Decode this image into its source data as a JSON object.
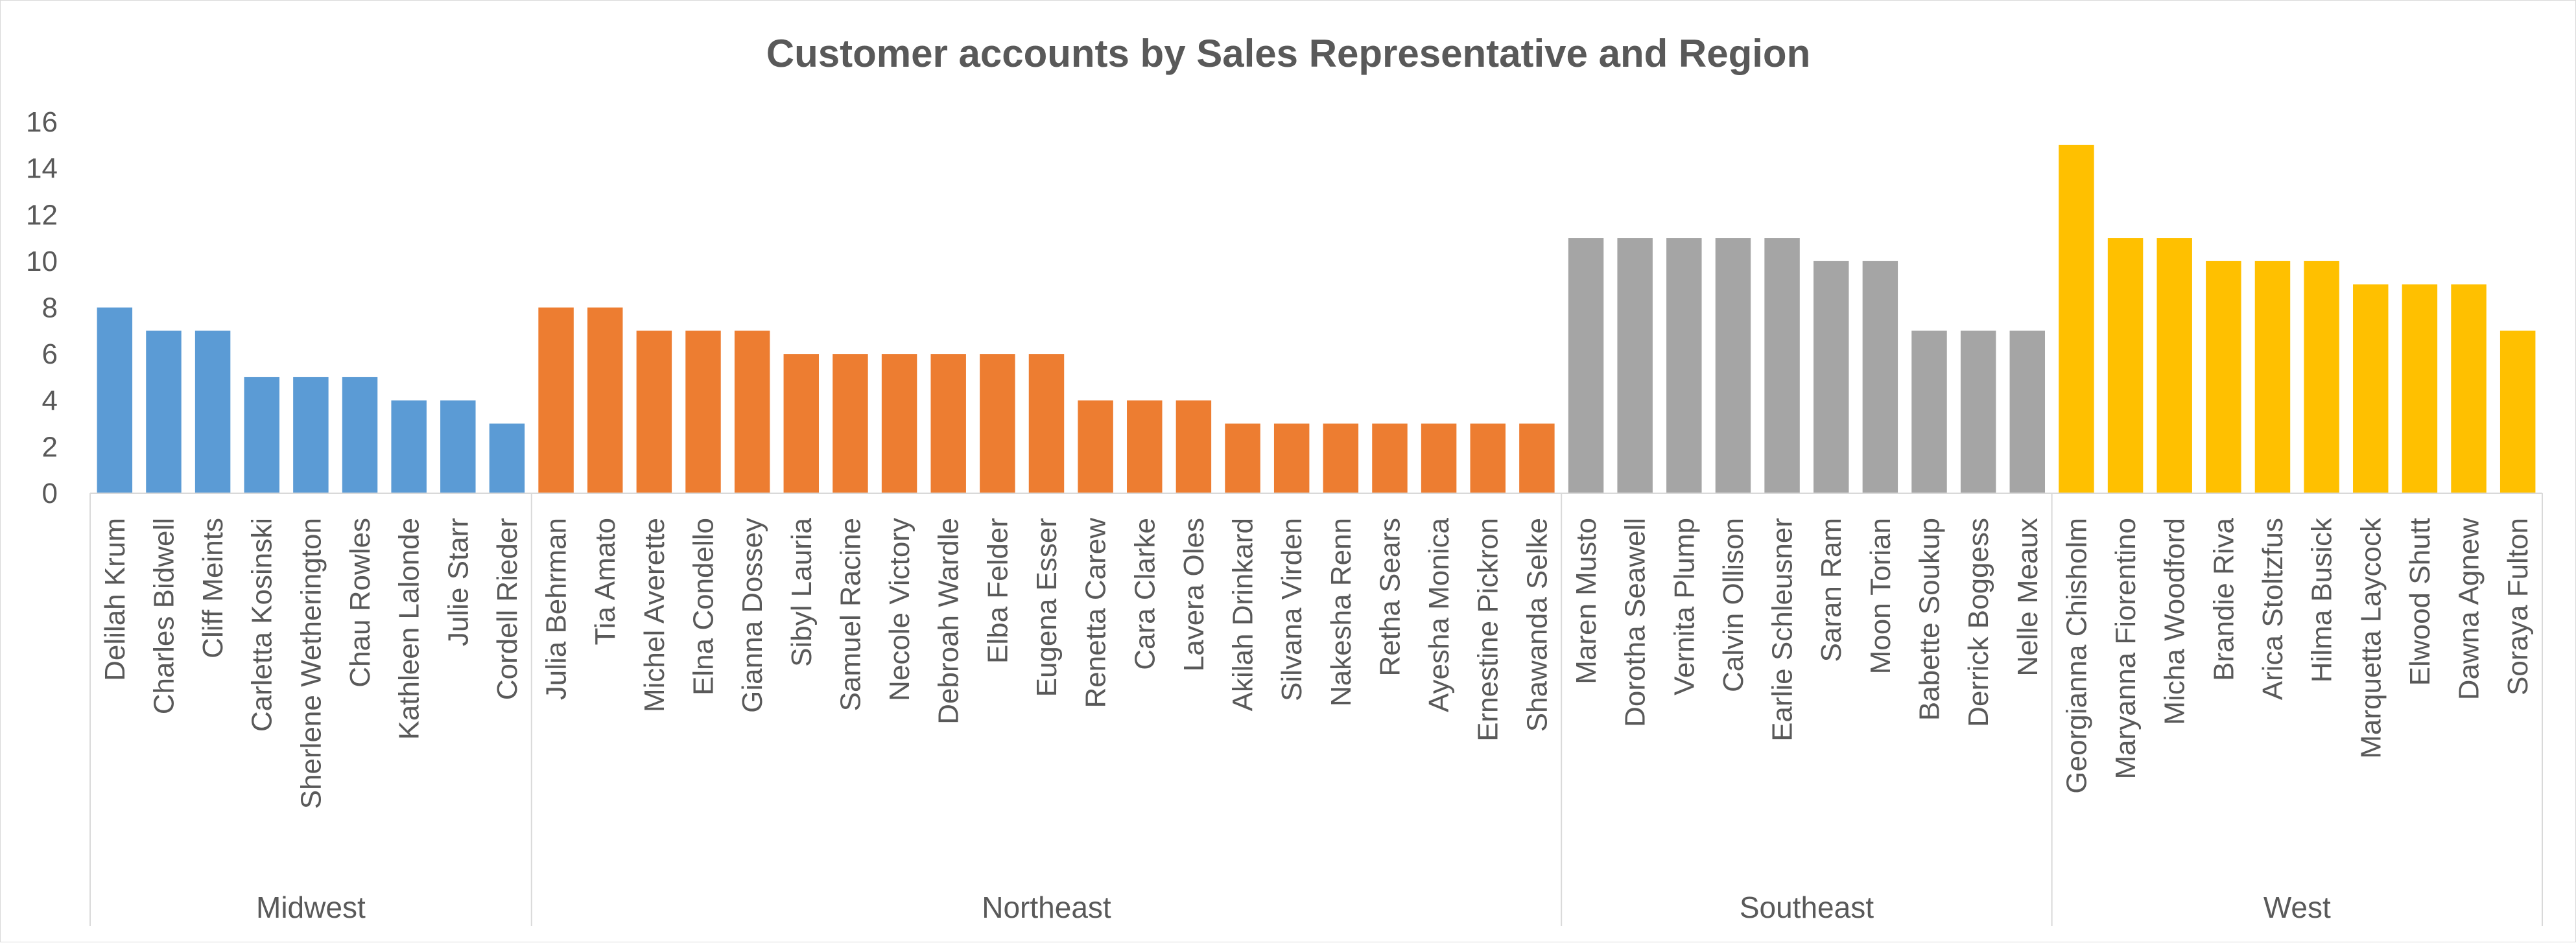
{
  "chart_data": {
    "type": "bar",
    "title": "Customer accounts by Sales Representative and Region",
    "xlabel": "",
    "ylabel": "",
    "ylim": [
      0,
      16
    ],
    "yticks": [
      0,
      2,
      4,
      6,
      8,
      10,
      12,
      14,
      16
    ],
    "grid": false,
    "legend": "none",
    "groups": [
      {
        "region": "Midwest",
        "color": "#5b9bd5",
        "categories": [
          "Delilah Krum",
          "Charles Bidwell",
          "Cliff Meints",
          "Carletta Kosinski",
          "Sherlene Wetherington",
          "Chau Rowles",
          "Kathleen Lalonde",
          "Julie Starr",
          "Cordell Rieder"
        ],
        "values": [
          8,
          7,
          7,
          5,
          5,
          5,
          4,
          4,
          3
        ]
      },
      {
        "region": "Northeast",
        "color": "#ed7d31",
        "categories": [
          "Julia Behrman",
          "Tia Amato",
          "Michel Averette",
          "Elna Condello",
          "Gianna Dossey",
          "Sibyl Lauria",
          "Samuel Racine",
          "Necole Victory",
          "Debroah Wardle",
          "Elba Felder",
          "Eugena Esser",
          "Renetta Carew",
          "Cara Clarke",
          "Lavera Oles",
          "Akilah Drinkard",
          "Silvana Virden",
          "Nakesha Renn",
          "Retha Sears",
          "Ayesha Monica",
          "Ernestine Pickron",
          "Shawanda Selke"
        ],
        "values": [
          8,
          8,
          7,
          7,
          7,
          6,
          6,
          6,
          6,
          6,
          6,
          4,
          4,
          4,
          3,
          3,
          3,
          3,
          3,
          3,
          3
        ]
      },
      {
        "region": "Southeast",
        "color": "#a5a5a5",
        "categories": [
          "Maren Musto",
          "Dorotha Seawell",
          "Vernita Plump",
          "Calvin Ollison",
          "Earlie Schleusner",
          "Saran Ram",
          "Moon Torian",
          "Babette Soukup",
          "Derrick Boggess",
          "Nelle Meaux"
        ],
        "values": [
          11,
          11,
          11,
          11,
          11,
          10,
          10,
          7,
          7,
          7
        ]
      },
      {
        "region": "West",
        "color": "#ffc000",
        "categories": [
          "Georgianna Chisholm",
          "Maryanna Fiorentino",
          "Micha Woodford",
          "Brandie Riva",
          "Arica Stoltzfus",
          "Hilma Busick",
          "Marquetta Laycock",
          "Elwood Shutt",
          "Dawna Agnew",
          "Soraya Fulton"
        ],
        "values": [
          15,
          11,
          11,
          10,
          10,
          10,
          9,
          9,
          9,
          7
        ]
      }
    ]
  }
}
